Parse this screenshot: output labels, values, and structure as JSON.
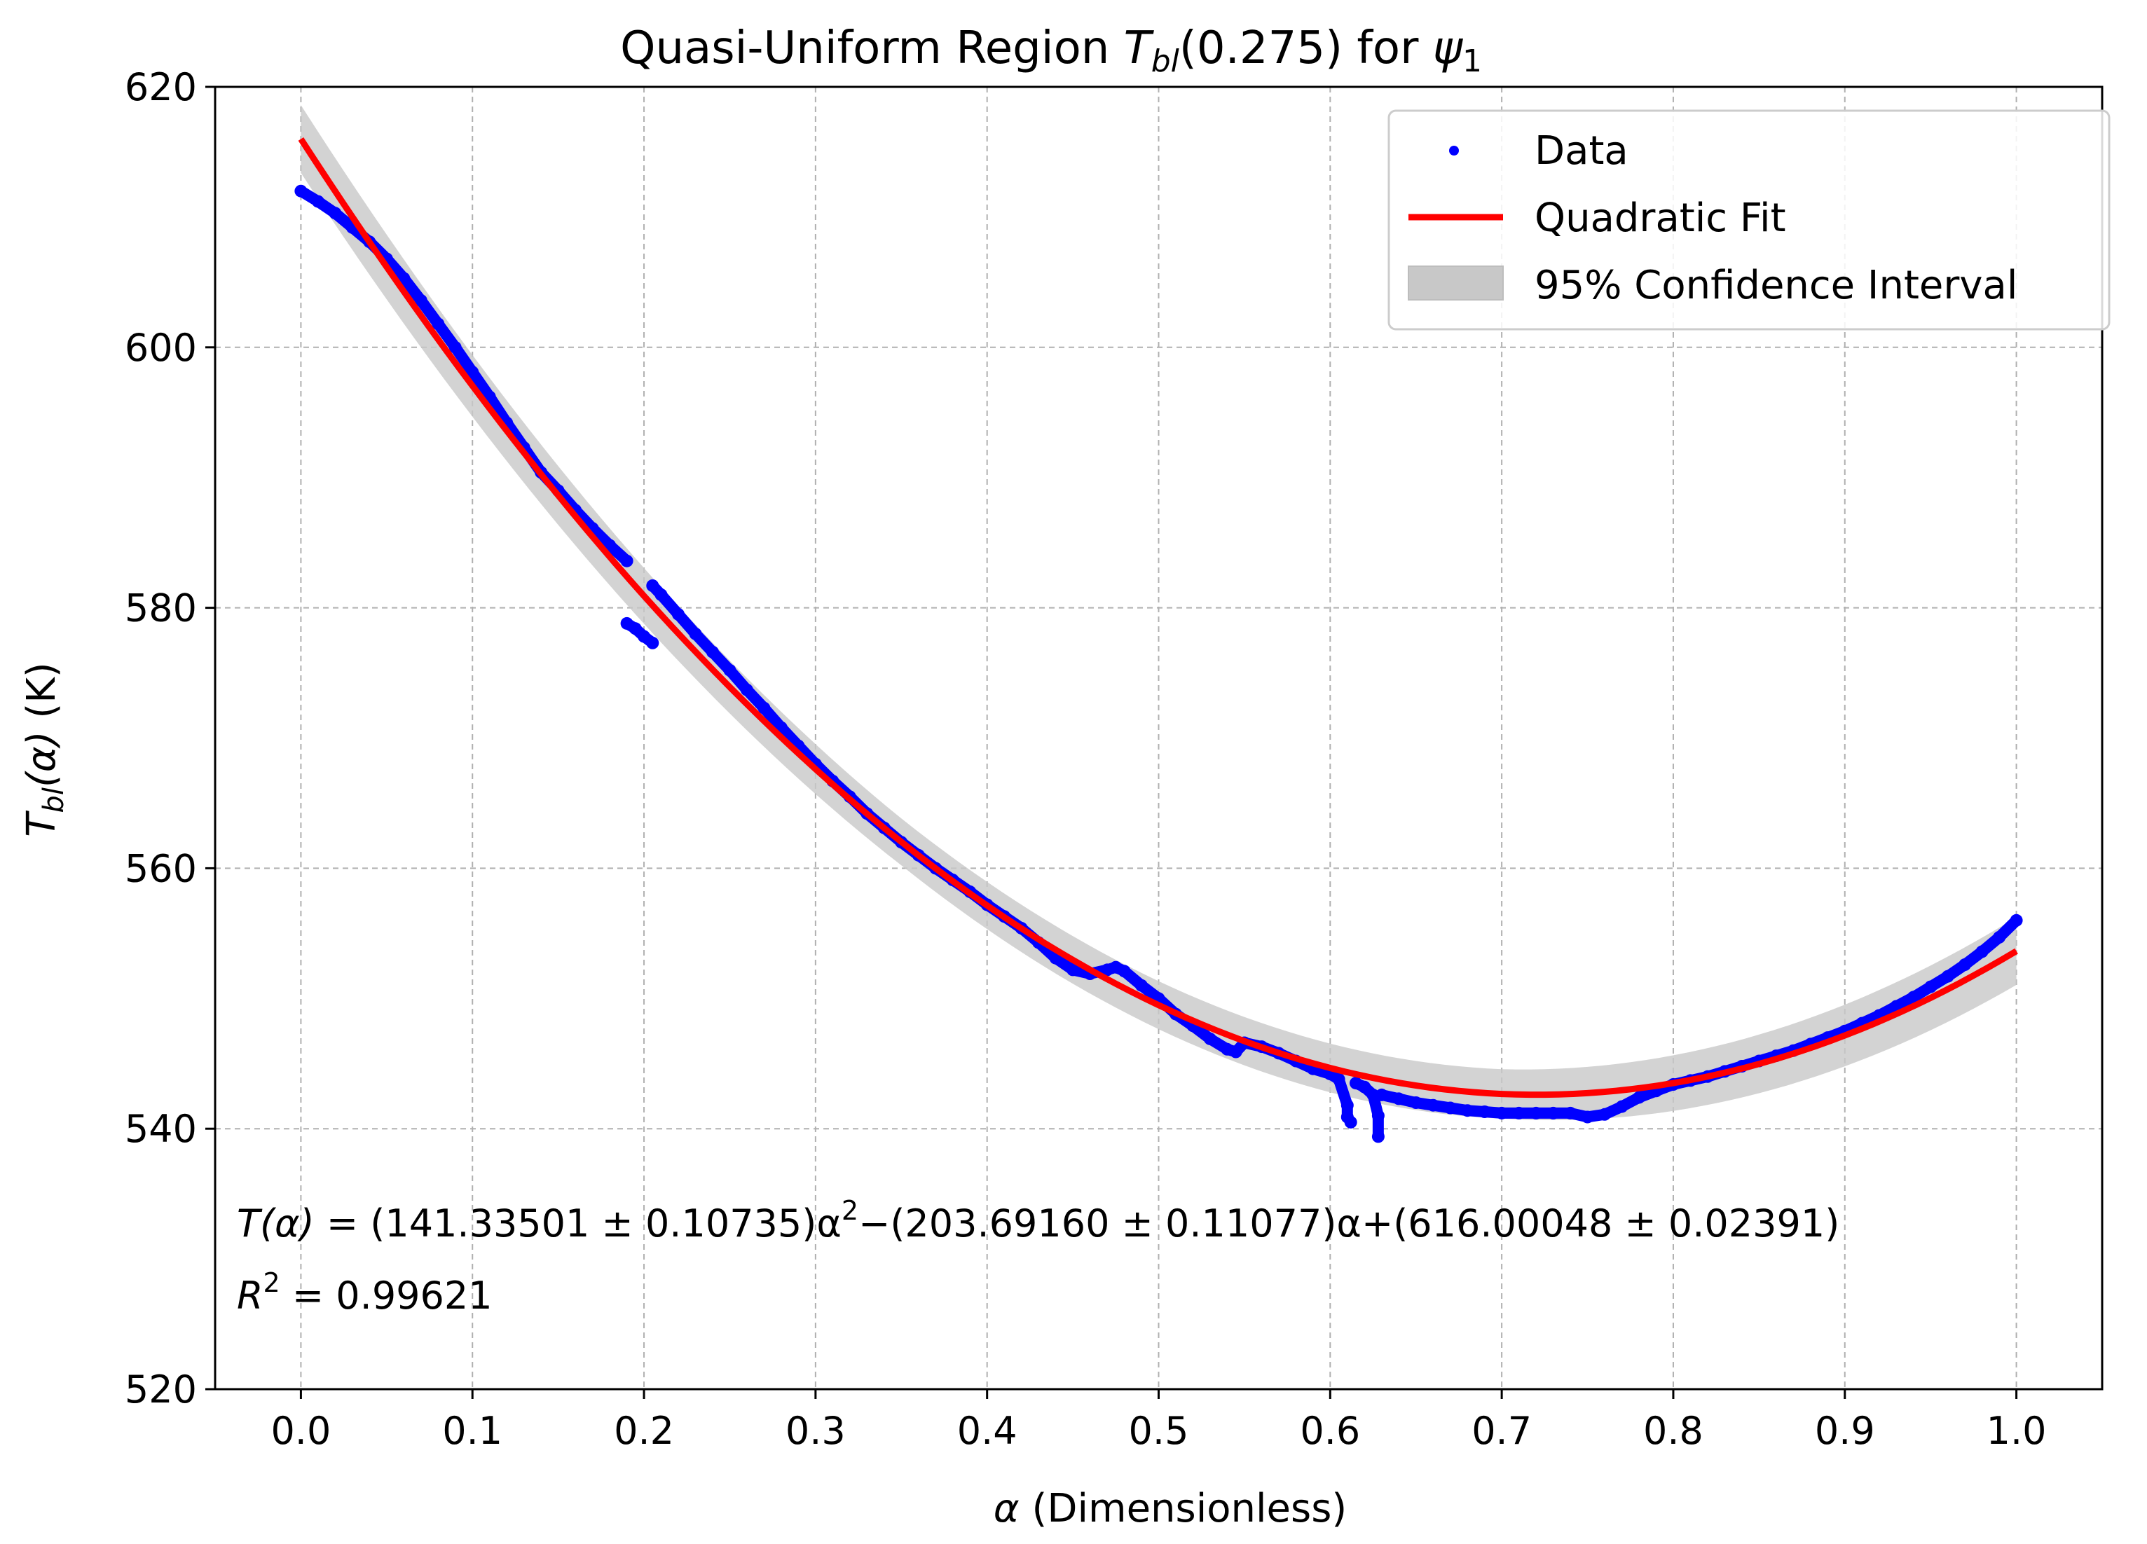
{
  "chart_data": {
    "type": "scatter",
    "title": {
      "prefix": "Quasi-Uniform Region ",
      "func_T": "T",
      "func_sub": "bl",
      "arg": "(0.275) for ",
      "psi": "ψ",
      "psi_sub": "1"
    },
    "xlabel": {
      "symbol": "α",
      "text": " (Dimensionless)"
    },
    "ylabel": {
      "T": "T",
      "sub": "bl",
      "arg": "(α)",
      "unit": " (K)"
    },
    "xlim": [
      -0.05,
      1.05
    ],
    "ylim": [
      520,
      620
    ],
    "xticks": [
      0.0,
      0.1,
      0.2,
      0.3,
      0.4,
      0.5,
      0.6,
      0.7,
      0.8,
      0.9,
      1.0
    ],
    "xtick_labels": [
      "0.0",
      "0.1",
      "0.2",
      "0.3",
      "0.4",
      "0.5",
      "0.6",
      "0.7",
      "0.8",
      "0.9",
      "1.0"
    ],
    "yticks": [
      520,
      540,
      560,
      580,
      600,
      620
    ],
    "ytick_labels": [
      "520",
      "540",
      "560",
      "580",
      "600",
      "620"
    ],
    "grid": true,
    "legend_position": "top-right",
    "legend": [
      "Data",
      "Quadratic Fit",
      "95% Confidence Interval"
    ],
    "fit": {
      "a": 141.33501,
      "b": -203.6916,
      "c": 616.00048
    },
    "ci_halfwidth": [
      {
        "x": 0.0,
        "hw": 2.6
      },
      {
        "x": 0.35,
        "hw": 1.8
      },
      {
        "x": 0.7,
        "hw": 1.9
      },
      {
        "x": 1.0,
        "hw": 2.6
      }
    ],
    "series": [
      {
        "name": "Data",
        "color": "#0000ff",
        "points": [
          [
            0.0,
            612.0
          ],
          [
            0.01,
            611.2
          ],
          [
            0.02,
            610.3
          ],
          [
            0.03,
            609.2
          ],
          [
            0.04,
            608.1
          ],
          [
            0.05,
            606.8
          ],
          [
            0.06,
            605.3
          ],
          [
            0.07,
            603.6
          ],
          [
            0.08,
            601.8
          ],
          [
            0.09,
            600.0
          ],
          [
            0.1,
            598.1
          ],
          [
            0.11,
            596.2
          ],
          [
            0.12,
            594.2
          ],
          [
            0.13,
            592.3
          ],
          [
            0.14,
            590.4
          ],
          [
            0.15,
            589.0
          ],
          [
            0.16,
            587.5
          ],
          [
            0.17,
            586.1
          ],
          [
            0.18,
            584.8
          ],
          [
            0.19,
            583.6
          ],
          [
            0.19,
            578.8
          ],
          [
            0.195,
            578.4
          ],
          [
            0.2,
            577.8
          ],
          [
            0.205,
            577.3
          ],
          [
            0.205,
            581.7
          ],
          [
            0.21,
            581.0
          ],
          [
            0.22,
            579.5
          ],
          [
            0.23,
            578.0
          ],
          [
            0.24,
            576.6
          ],
          [
            0.25,
            575.2
          ],
          [
            0.26,
            573.7
          ],
          [
            0.27,
            572.3
          ],
          [
            0.28,
            570.8
          ],
          [
            0.29,
            569.4
          ],
          [
            0.3,
            568.0
          ],
          [
            0.31,
            566.7
          ],
          [
            0.32,
            565.5
          ],
          [
            0.33,
            564.2
          ],
          [
            0.34,
            563.1
          ],
          [
            0.35,
            562.0
          ],
          [
            0.36,
            561.0
          ],
          [
            0.37,
            560.0
          ],
          [
            0.38,
            559.1
          ],
          [
            0.39,
            558.2
          ],
          [
            0.4,
            557.2
          ],
          [
            0.41,
            556.3
          ],
          [
            0.42,
            555.4
          ],
          [
            0.43,
            554.3
          ],
          [
            0.44,
            553.1
          ],
          [
            0.45,
            552.2
          ],
          [
            0.46,
            551.9
          ],
          [
            0.47,
            552.2
          ],
          [
            0.475,
            552.4
          ],
          [
            0.48,
            552.1
          ],
          [
            0.49,
            551.0
          ],
          [
            0.5,
            550.0
          ],
          [
            0.51,
            548.8
          ],
          [
            0.52,
            547.9
          ],
          [
            0.53,
            546.9
          ],
          [
            0.54,
            546.1
          ],
          [
            0.545,
            545.9
          ],
          [
            0.55,
            546.6
          ],
          [
            0.56,
            546.3
          ],
          [
            0.57,
            545.8
          ],
          [
            0.58,
            545.2
          ],
          [
            0.59,
            544.6
          ],
          [
            0.6,
            544.2
          ],
          [
            0.605,
            543.8
          ],
          [
            0.61,
            541.8
          ],
          [
            0.61,
            540.9
          ],
          [
            0.612,
            540.5
          ],
          [
            0.615,
            543.5
          ],
          [
            0.62,
            543.2
          ],
          [
            0.625,
            542.6
          ],
          [
            0.628,
            541.0
          ],
          [
            0.628,
            539.4
          ],
          [
            0.63,
            542.6
          ],
          [
            0.64,
            542.3
          ],
          [
            0.65,
            542.0
          ],
          [
            0.66,
            541.8
          ],
          [
            0.67,
            541.6
          ],
          [
            0.68,
            541.4
          ],
          [
            0.69,
            541.3
          ],
          [
            0.7,
            541.2
          ],
          [
            0.71,
            541.2
          ],
          [
            0.72,
            541.2
          ],
          [
            0.73,
            541.2
          ],
          [
            0.74,
            541.2
          ],
          [
            0.75,
            540.9
          ],
          [
            0.76,
            541.1
          ],
          [
            0.77,
            541.7
          ],
          [
            0.78,
            542.4
          ],
          [
            0.79,
            542.9
          ],
          [
            0.8,
            543.4
          ],
          [
            0.81,
            543.7
          ],
          [
            0.82,
            544.0
          ],
          [
            0.83,
            544.4
          ],
          [
            0.84,
            544.8
          ],
          [
            0.85,
            545.2
          ],
          [
            0.86,
            545.6
          ],
          [
            0.87,
            546.0
          ],
          [
            0.88,
            546.5
          ],
          [
            0.89,
            547.0
          ],
          [
            0.9,
            547.5
          ],
          [
            0.91,
            548.1
          ],
          [
            0.92,
            548.7
          ],
          [
            0.93,
            549.4
          ],
          [
            0.94,
            550.1
          ],
          [
            0.95,
            550.9
          ],
          [
            0.96,
            551.7
          ],
          [
            0.97,
            552.6
          ],
          [
            0.98,
            553.6
          ],
          [
            0.99,
            554.7
          ],
          [
            1.0,
            556.0
          ]
        ]
      },
      {
        "name": "Quadratic Fit",
        "color": "#ff0000"
      }
    ],
    "annotation": {
      "lhs": "T(α)",
      "eq": " = (141.33501 ± 0.10735)α",
      "sup2": "2",
      "rest": "−(203.69160 ± 0.11077)α+(616.00048 ± 0.02391)",
      "r_letter": "R",
      "r_sup": "2",
      "r_value": " = 0.99621"
    }
  }
}
